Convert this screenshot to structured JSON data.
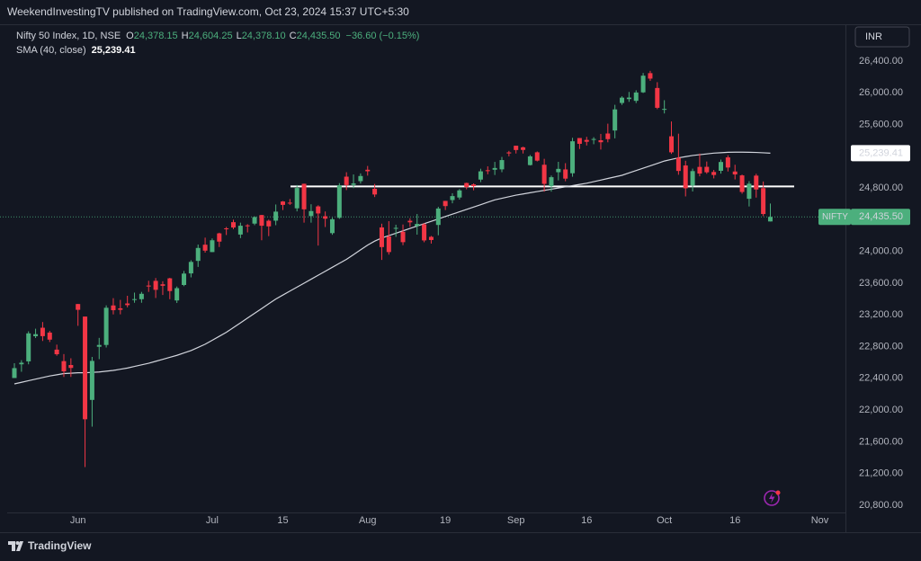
{
  "header": {
    "publisher": "WeekendInvestingTV published on TradingView.com, Oct 23, 2024 15:37 UTC+5:30",
    "brand": "TradingView"
  },
  "chart_data": {
    "type": "candlestick",
    "title": "Nifty 50 Index, 1D, NSE",
    "legend_ohlc": [
      {
        "key": "O",
        "text": "24,378.15"
      },
      {
        "key": "H",
        "text": "24,604.25"
      },
      {
        "key": "L",
        "text": "24,378.10"
      },
      {
        "key": "C",
        "text": "24,435.50"
      }
    ],
    "change": "−36.60 (−0.15%)",
    "currency": "INR",
    "symbol": "NIFTY",
    "last_price_label": "24,435.50",
    "up_color": "#4caf7d",
    "down_color": "#f23645",
    "grid": false,
    "horizontal_line": 24820,
    "ylim": [
      20709,
      26853
    ],
    "yticks": [
      {
        "value": 20800,
        "label": "20,800.00"
      },
      {
        "value": 21200,
        "label": "21,200.00"
      },
      {
        "value": 21600,
        "label": "21,600.00"
      },
      {
        "value": 22000,
        "label": "22,000.00"
      },
      {
        "value": 22400,
        "label": "22,400.00"
      },
      {
        "value": 22800,
        "label": "22,800.00"
      },
      {
        "value": 23200,
        "label": "23,200.00"
      },
      {
        "value": 23600,
        "label": "23,600.00"
      },
      {
        "value": 24000,
        "label": "24,000.00"
      },
      {
        "value": 24400,
        "label": "24,400.00"
      },
      {
        "value": 24800,
        "label": "24,800.00"
      },
      {
        "value": 25200,
        "label": "25,200.00"
      },
      {
        "value": 25600,
        "label": "25,600.00"
      },
      {
        "value": 26000,
        "label": "26,000.00"
      },
      {
        "value": 26400,
        "label": "26,400.00"
      }
    ],
    "categories": [
      null,
      null,
      null,
      null,
      null,
      null,
      null,
      null,
      null,
      "Jun",
      null,
      null,
      null,
      null,
      null,
      null,
      null,
      null,
      null,
      null,
      null,
      null,
      null,
      null,
      null,
      null,
      null,
      null,
      "Jul",
      null,
      null,
      null,
      null,
      null,
      null,
      null,
      null,
      null,
      "15",
      null,
      null,
      null,
      null,
      null,
      null,
      null,
      null,
      null,
      null,
      null,
      "Aug",
      null,
      null,
      null,
      null,
      null,
      null,
      null,
      null,
      null,
      null,
      "19",
      null,
      null,
      null,
      null,
      null,
      null,
      null,
      null,
      null,
      "Sep",
      null,
      null,
      null,
      null,
      null,
      null,
      null,
      null,
      null,
      "16",
      null,
      null,
      null,
      null,
      null,
      null,
      null,
      null,
      null,
      null,
      "Oct",
      null,
      null,
      null,
      null,
      null,
      null,
      null,
      null,
      null,
      "16",
      null,
      null,
      null,
      null,
      null,
      null,
      null,
      null,
      null,
      null,
      null,
      "Nov"
    ],
    "open": [
      22404,
      22577,
      22614,
      22931,
      23038,
      22977,
      22762,
      22617,
      22568,
      23337,
      23179,
      22128,
      22798,
      22821,
      23319,
      23283,
      23344,
      23394,
      23398,
      23570,
      23629,
      23586,
      23661,
      23382,
      23577,
      23723,
      23881,
      24085,
      23992,
      24228,
      24291,
      24369,
      24213,
      24329,
      24351,
      24459,
      24387,
      24388,
      24630,
      24615,
      24544,
      24853,
      24446,
      24568,
      24444,
      24231,
      24424,
      24943,
      24839,
      24886,
      25030,
      24790,
      24303,
      24189,
      24289,
      24248,
      24387,
      24320,
      24342,
      24184,
      24334,
      24637,
      24648,
      24680,
      24863,
      24845,
      24906,
      25024,
      25030,
      25035,
      25249,
      25333,
      25313,
      25089,
      25250,
      25093,
      24823,
      24999,
      25034,
      24986,
      25430,
      25406,
      25416,
      25402,
      25487,
      25525,
      25872,
      25921,
      25899,
      26006,
      26248,
      26061,
      25789,
      25452,
      25181,
      25084,
      24832,
      25066,
      25067,
      25002,
      25017,
      25186,
      25008,
      24959,
      24664,
      24956,
      24798,
      24378.15,
      null,
      null,
      null,
      null,
      null,
      null,
      null
    ],
    "high": [
      22591,
      22629,
      22993,
      23026,
      23110,
      22998,
      22825,
      22706,
      22653,
      23338,
      23179,
      22670,
      22910,
      23320,
      23411,
      23389,
      23441,
      23481,
      23490,
      23630,
      23665,
      23624,
      23667,
      23558,
      23754,
      23889,
      24087,
      24174,
      24164,
      24236,
      24309,
      24401,
      24363,
      24344,
      24443,
      24461,
      24402,
      24592,
      24636,
      24661,
      24837,
      24855,
      24595,
      24582,
      24504,
      24426,
      24861,
      24999,
      24971,
      24984,
      25078,
      24851,
      24350,
      24382,
      24337,
      24340,
      24419,
      24472,
      24359,
      24196,
      24563,
      24638,
      24734,
      24787,
      24867,
      24858,
      25043,
      25073,
      25129,
      25192,
      25268,
      25333,
      25321,
      25216,
      25261,
      25168,
      24957,
      25130,
      25113,
      25433,
      25430,
      25445,
      25441,
      25482,
      25611,
      25849,
      25956,
      26011,
      26032,
      26250,
      26277,
      26134,
      25907,
      25639,
      25485,
      25143,
      25044,
      25234,
      25134,
      25028,
      25159,
      25213,
      25093,
      24969,
      24886,
      24979,
      24882,
      24604.25,
      null,
      null,
      null,
      null,
      null,
      null,
      null
    ],
    "low": [
      22404,
      22483,
      22577,
      22908,
      22871,
      22858,
      22685,
      22417,
      22418,
      23062,
      21281,
      21791,
      22642,
      22789,
      23206,
      23207,
      23295,
      23353,
      23353,
      23490,
      23413,
      23451,
      23398,
      23350,
      23562,
      23673,
      23805,
      23985,
      23992,
      24056,
      24207,
      24281,
      24168,
      24240,
      24331,
      24141,
      24193,
      24331,
      24522,
      24587,
      24505,
      24363,
      24363,
      24074,
      24308,
      24210,
      24411,
      24774,
      24798,
      24856,
      24956,
      24686,
      23893,
      23960,
      24184,
      24079,
      24311,
      24212,
      24116,
      24099,
      24204,
      24522,
      24607,
      24654,
      24784,
      24771,
      24874,
      24973,
      24964,
      24999,
      25199,
      25235,
      25235,
      25084,
      25135,
      24754,
      24754,
      24896,
      24885,
      24942,
      25292,
      25336,
      25352,
      25285,
      25376,
      25426,
      25848,
      25886,
      25871,
      25998,
      26151,
      25794,
      25740,
      25230,
      24967,
      24694,
      24756,
      24947,
      24979,
      24921,
      24981,
      25008,
      24908,
      24728,
      24567,
      24679,
      24445,
      24378.1,
      null,
      null,
      null,
      null,
      null,
      null,
      null
    ],
    "close": [
      22529,
      22597,
      22967,
      22957,
      22932,
      22888,
      22704,
      22488,
      22531,
      23264,
      21884,
      22620,
      22821,
      23290,
      23259,
      23264,
      23323,
      23399,
      23466,
      23558,
      23516,
      23567,
      23501,
      23537,
      23721,
      23868,
      24044,
      24010,
      24141,
      24124,
      24286,
      24302,
      24324,
      24320,
      24433,
      24324,
      24316,
      24502,
      24587,
      24613,
      24800,
      24531,
      24509,
      24479,
      24413,
      24406,
      24834,
      24837,
      24857,
      24951,
      25011,
      24718,
      24055,
      23992,
      24297,
      24117,
      24367,
      24347,
      24139,
      24144,
      24541,
      24572,
      24698,
      24770,
      24811,
      24823,
      25010,
      25017,
      25052,
      25152,
      25236,
      25279,
      25280,
      25199,
      25145,
      24852,
      24936,
      25041,
      24918,
      25389,
      25357,
      25383,
      25418,
      25377,
      25416,
      25791,
      25939,
      25940,
      26004,
      26216,
      26179,
      25811,
      25797,
      25250,
      25015,
      24796,
      25013,
      24982,
      24998,
      24964,
      25128,
      25058,
      24971,
      24750,
      24854,
      24781,
      24472,
      24435.5,
      null,
      null,
      null,
      null,
      null,
      null,
      null
    ],
    "series": [
      {
        "name": "SMA (40, close)",
        "color": "#d1d4dc",
        "last_label": "25,239.41",
        "values": [
          22330,
          22350,
          22370,
          22390,
          22410,
          22430,
          22445,
          22460,
          22465,
          22470,
          22470,
          22475,
          22480,
          22490,
          22500,
          22515,
          22530,
          22550,
          22570,
          22590,
          22615,
          22640,
          22665,
          22690,
          22720,
          22750,
          22790,
          22830,
          22880,
          22930,
          22980,
          23040,
          23100,
          23160,
          23220,
          23280,
          23340,
          23400,
          23450,
          23500,
          23550,
          23600,
          23650,
          23700,
          23750,
          23800,
          23850,
          23900,
          23960,
          24020,
          24080,
          24130,
          24170,
          24200,
          24230,
          24260,
          24290,
          24320,
          24350,
          24380,
          24410,
          24440,
          24470,
          24500,
          24530,
          24560,
          24590,
          24620,
          24650,
          24670,
          24690,
          24710,
          24725,
          24740,
          24755,
          24770,
          24785,
          24800,
          24815,
          24830,
          24845,
          24860,
          24880,
          24900,
          24920,
          24940,
          24960,
          24990,
          25020,
          25050,
          25080,
          25110,
          25140,
          25160,
          25180,
          25195,
          25210,
          25220,
          25230,
          25240,
          25245,
          25250,
          25252,
          25252,
          25250,
          25248,
          25244,
          25239.41,
          null,
          null,
          null,
          null,
          null,
          null,
          null
        ]
      }
    ]
  }
}
